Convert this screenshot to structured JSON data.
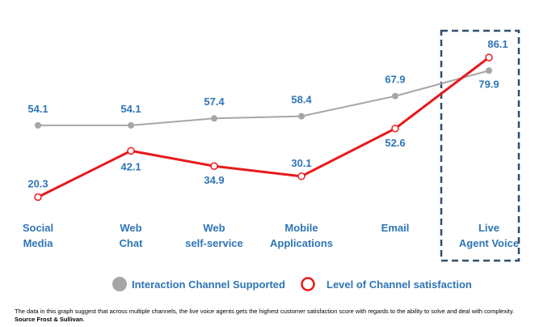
{
  "chart_data": {
    "type": "line",
    "categories": [
      [
        "Social",
        "Media"
      ],
      [
        "Web",
        "Chat"
      ],
      [
        "Web",
        "self-service"
      ],
      [
        "Mobile",
        "Applications"
      ],
      [
        "Email"
      ],
      [
        "Live",
        "Agent Voice"
      ]
    ],
    "series": [
      {
        "name": "Interaction Channel Supported",
        "color": "#a6a6a6",
        "values": [
          54.1,
          54.1,
          57.4,
          58.4,
          67.9,
          79.9
        ],
        "labels": [
          "54.1",
          "54.1",
          "57.4",
          "58.4",
          "67.9",
          "79.9"
        ]
      },
      {
        "name": "Level of Channel satisfaction",
        "color": "#e8191b",
        "values": [
          20.3,
          42.1,
          34.9,
          30.1,
          52.6,
          86.1
        ],
        "labels": [
          "20.3",
          "42.1",
          "34.9",
          "30.1",
          "52.6",
          "86.1"
        ]
      }
    ],
    "highlight_category": "Live Agent Voice",
    "label_color": "#2e75b6",
    "highlight_box_color": "#2f4f6f"
  },
  "caption": {
    "text": "The data in this graph suggest that across multiple channels, the live voice agents gets the highest customer satisfaction score with regards to the ability to solve and deal with complexity.",
    "source": "Source Frost & Sullivan",
    "trailing": "."
  }
}
